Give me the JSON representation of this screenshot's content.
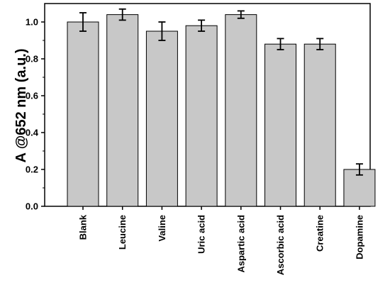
{
  "chart_data": {
    "type": "bar",
    "title": "",
    "xlabel": "",
    "ylabel": "A @652 nm (a.u.)",
    "ylim": [
      0,
      1.1
    ],
    "yticks": [
      "0.0",
      "0.2",
      "0.4",
      "0.6",
      "0.8",
      "1.0"
    ],
    "grid": false,
    "legend": "none",
    "categories": [
      "Blank",
      "Leucine",
      "Valine",
      "Uric acid",
      "Aspartic acid",
      "Ascorbic acid",
      "Creatine",
      "Dopamine"
    ],
    "values": [
      1.0,
      1.04,
      0.95,
      0.98,
      1.04,
      0.88,
      0.88,
      0.2
    ],
    "errors": [
      0.05,
      0.03,
      0.05,
      0.03,
      0.02,
      0.03,
      0.03,
      0.03
    ],
    "bar_color": "#c8c8c8",
    "edge_color": "#000000"
  }
}
